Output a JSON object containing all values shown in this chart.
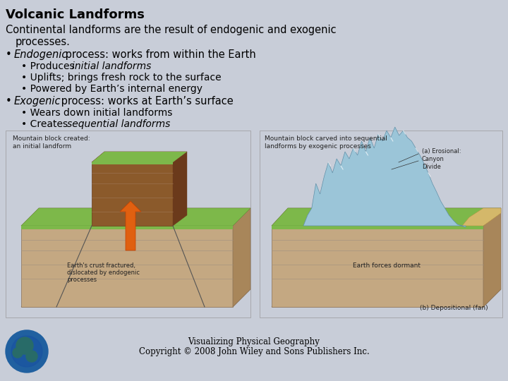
{
  "title": "Volcanic Landforms",
  "background_color": "#c8cdd8",
  "text_color": "#000000",
  "title_fontsize": 13,
  "body_fontsize": 10.5,
  "sub_fontsize": 10,
  "footer_line1": "Visualizing Physical Geography",
  "footer_line2": "Copyright © 2008 John Wiley and Sons Publishers Inc.",
  "footer_fontsize": 8.5
}
